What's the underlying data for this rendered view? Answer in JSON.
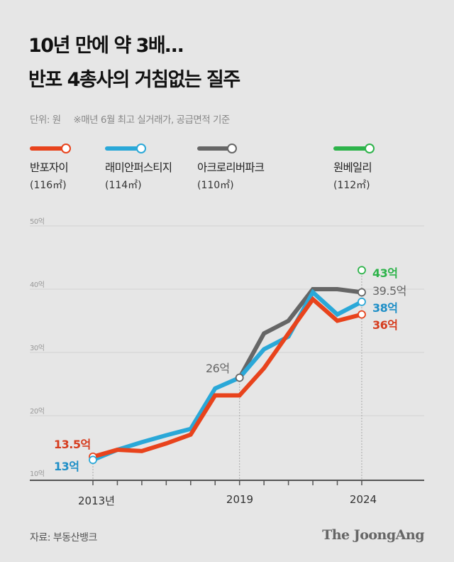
{
  "header": {
    "title_line1": "10년 만에 약 3배…",
    "title_line2": "반포 4총사의 거침없는 질주",
    "unit": "단위: 원",
    "note": "※매년 6월 최고 실거래가, 공급면적 기준"
  },
  "legend": [
    {
      "name": "반포자이",
      "area": "(116㎡)",
      "color": "#e8431c"
    },
    {
      "name": "래미안퍼스티지",
      "area": "(114㎡)",
      "color": "#2aa8d8"
    },
    {
      "name": "아크로리버파크",
      "area": "(110㎡)",
      "color": "#666666"
    },
    {
      "name": "원베일리",
      "area": "(112㎡)",
      "color": "#2db34a"
    }
  ],
  "chart_data": {
    "type": "line",
    "title": "10년 만에 약 3배… 반포 4총사의 거침없는 질주",
    "ylabel": "억 원",
    "ylim": [
      10,
      50
    ],
    "yticks": [
      "50억",
      "40억",
      "30억",
      "20억",
      "10억"
    ],
    "ytick_values": [
      50,
      40,
      30,
      20,
      10
    ],
    "x": [
      2013,
      2014,
      2015,
      2016,
      2017,
      2018,
      2019,
      2020,
      2021,
      2022,
      2023,
      2024
    ],
    "xtick_labels": [
      {
        "year": 2013,
        "label": "2013년"
      },
      {
        "year": 2019,
        "label": "2019"
      },
      {
        "year": 2024,
        "label": "2024"
      }
    ],
    "grid": true,
    "legend_position": "top",
    "series": [
      {
        "name": "반포자이",
        "color": "#e8431c",
        "values": [
          13.5,
          14.6,
          14.4,
          15.6,
          17.0,
          23.2,
          23.2,
          27.5,
          33.0,
          38.4,
          35.0,
          36
        ]
      },
      {
        "name": "래미안퍼스티지",
        "color": "#2aa8d8",
        "values": [
          13,
          14.6,
          15.8,
          16.9,
          17.9,
          24.3,
          26,
          30.5,
          32.5,
          39.5,
          36,
          38
        ]
      },
      {
        "name": "아크로리버파크",
        "color": "#666666",
        "values": [
          null,
          null,
          null,
          null,
          null,
          null,
          26,
          33,
          35,
          40,
          40,
          39.5
        ]
      },
      {
        "name": "원베일리",
        "color": "#2db34a",
        "values": [
          null,
          null,
          null,
          null,
          null,
          null,
          null,
          null,
          null,
          null,
          null,
          43
        ]
      }
    ],
    "annotations": [
      {
        "text": "13.5억",
        "year": 2013,
        "value": 13.5,
        "color": "#d63c1e"
      },
      {
        "text": "13억",
        "year": 2013,
        "value": 13,
        "color": "#1f8fc7"
      },
      {
        "text": "26억",
        "year": 2019,
        "value": 26,
        "color": "#666666"
      },
      {
        "text": "43억",
        "year": 2024,
        "value": 43,
        "color": "#2db34a"
      },
      {
        "text": "39.5억",
        "year": 2024,
        "value": 39.5,
        "color": "#666666"
      },
      {
        "text": "38억",
        "year": 2024,
        "value": 38,
        "color": "#1f8fc7"
      },
      {
        "text": "36억",
        "year": 2024,
        "value": 36,
        "color": "#d63c1e"
      }
    ]
  },
  "footer": {
    "source": "자료: 부동산뱅크",
    "logo": "The JoongAng"
  }
}
